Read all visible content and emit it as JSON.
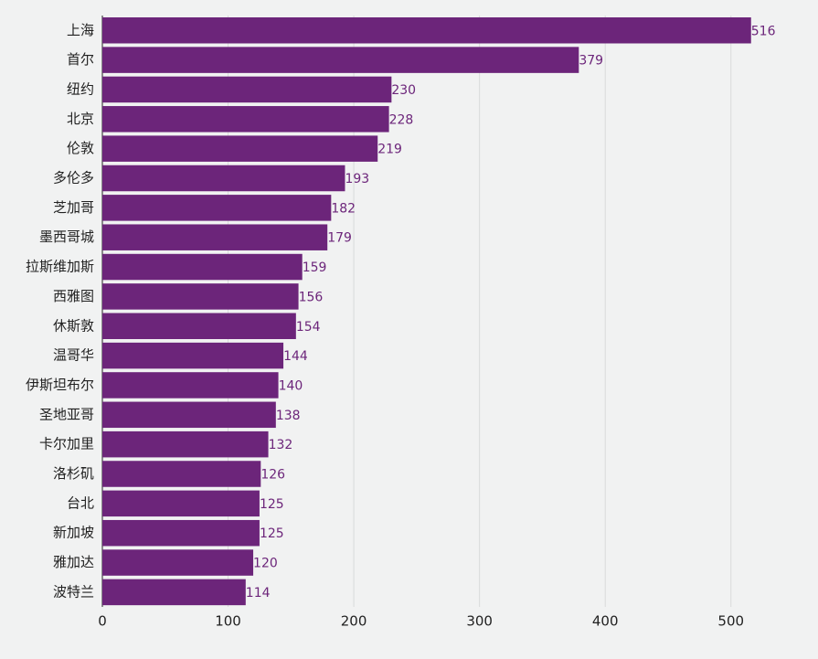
{
  "chart_data": {
    "type": "bar",
    "orientation": "horizontal",
    "categories": [
      "上海",
      "首尔",
      "纽约",
      "北京",
      "伦敦",
      "多伦多",
      "芝加哥",
      "墨西哥城",
      "拉斯维加斯",
      "西雅图",
      "休斯敦",
      "温哥华",
      "伊斯坦布尔",
      "圣地亚哥",
      "卡尔加里",
      "洛杉矶",
      "台北",
      "新加坡",
      "雅加达",
      "波特兰"
    ],
    "values": [
      516,
      379,
      230,
      228,
      219,
      193,
      182,
      179,
      159,
      156,
      154,
      144,
      140,
      138,
      132,
      126,
      125,
      125,
      120,
      114
    ],
    "title": "",
    "xlabel": "",
    "ylabel": "",
    "xlim": [
      0,
      550
    ],
    "x_ticks": [
      0,
      100,
      200,
      300,
      400,
      500
    ],
    "grid": "vertical",
    "legend": "none",
    "data_labels": true,
    "colors": {
      "bar": "#6c257a",
      "value_label": "#6c257a",
      "grid": "#d9dada",
      "axis": "#222222",
      "background": "#f1f2f2"
    }
  }
}
